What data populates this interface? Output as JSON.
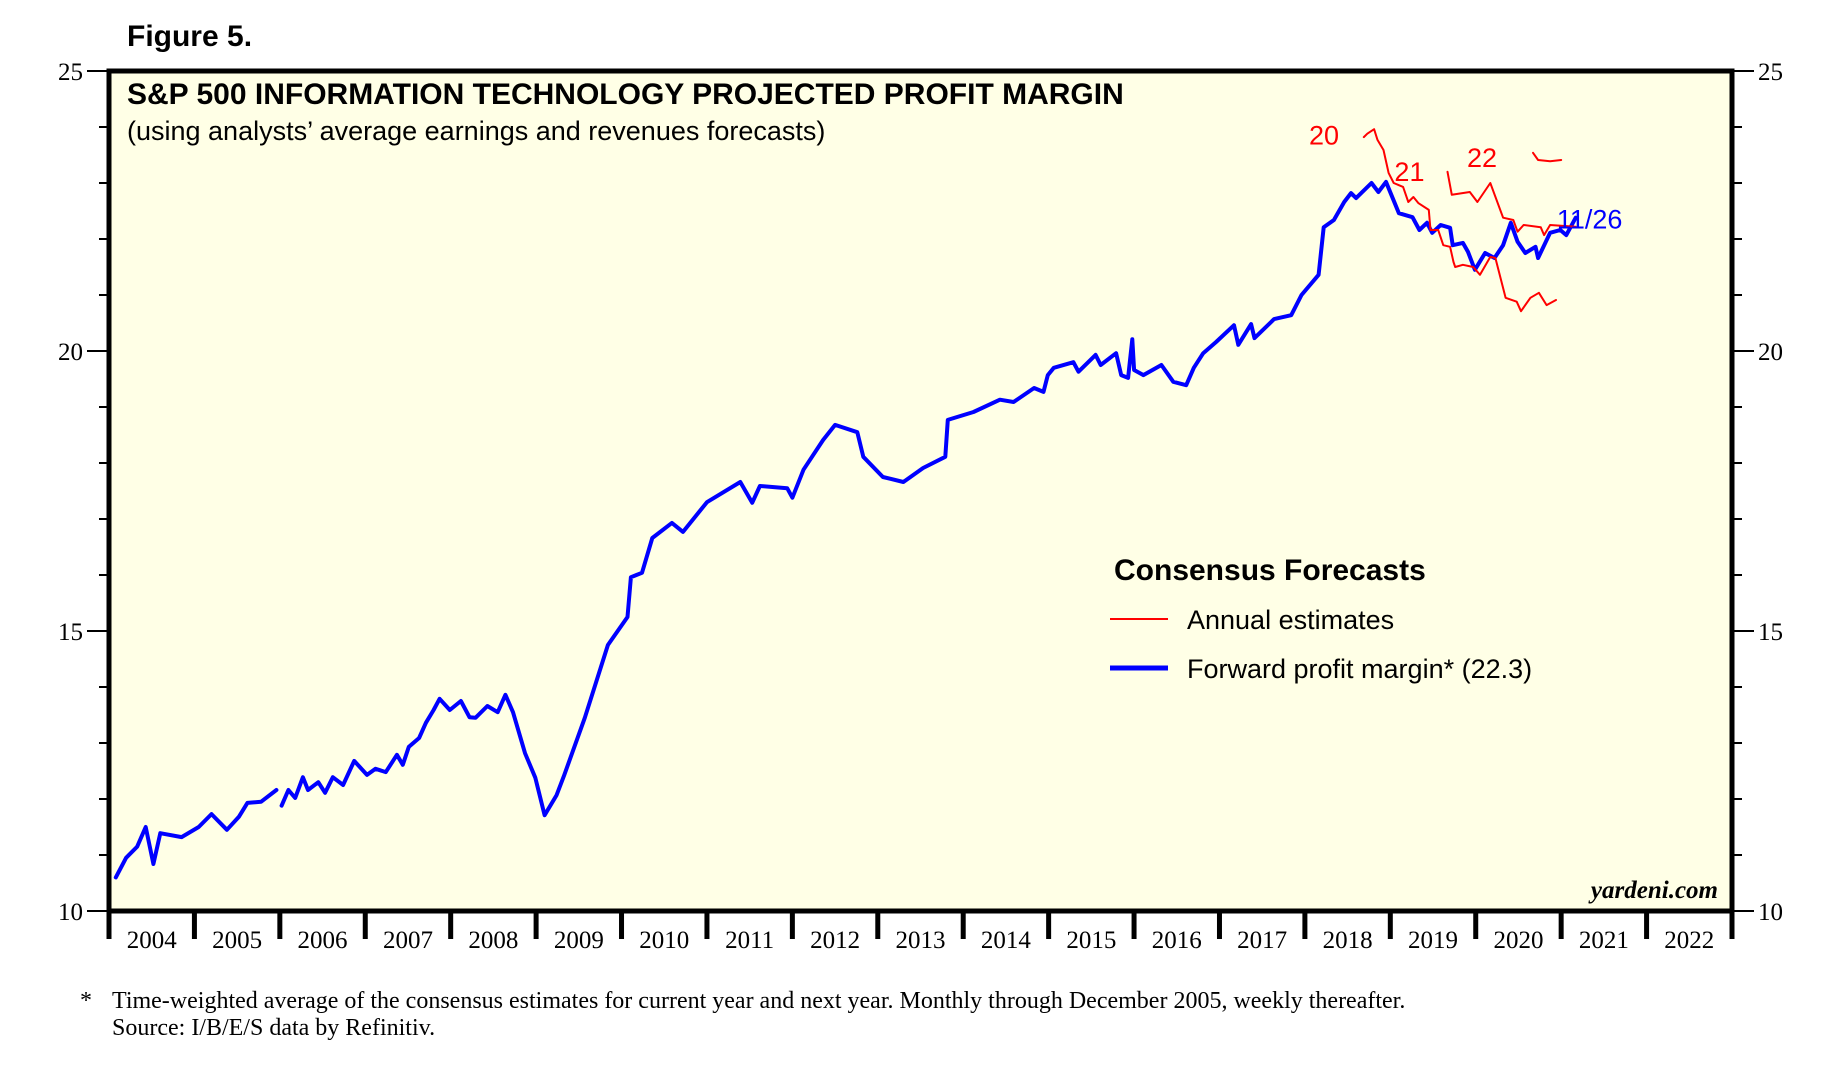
{
  "figure_label": "Figure 5.",
  "footnote": {
    "marker": "*",
    "line1": "Time-weighted average of the consensus estimates for current year and next year. Monthly through December 2005, weekly thereafter.",
    "line2": "Source: I/B/E/S data by Refinitiv."
  },
  "colors": {
    "plot_background": "#ffffe6",
    "forward_line": "#0000ff",
    "annual_line": "#ff0000",
    "axis": "#000000"
  },
  "chart_data": {
    "type": "line",
    "title": "S&P 500 INFORMATION TECHNOLOGY PROJECTED PROFIT MARGIN",
    "subtitle": "(using analysts’ average earnings and revenues forecasts)",
    "xlabel": "",
    "ylabel": "",
    "xlim": [
      2004,
      2023
    ],
    "ylim": [
      10,
      25
    ],
    "y_major_ticks": [
      10,
      15,
      20,
      25
    ],
    "y_minor_step": 1,
    "y_axes": [
      "left",
      "right"
    ],
    "x_tick_labels": [
      "2004",
      "2005",
      "2006",
      "2007",
      "2008",
      "2009",
      "2010",
      "2011",
      "2012",
      "2013",
      "2014",
      "2015",
      "2016",
      "2017",
      "2018",
      "2019",
      "2020",
      "2021",
      "2022"
    ],
    "grid": false,
    "legend": {
      "title": "Consensus Forecasts",
      "position": "center-right",
      "entries": [
        {
          "label": "Annual estimates",
          "series": "annual"
        },
        {
          "label": "Forward profit margin* (22.3)",
          "series": "forward"
        }
      ]
    },
    "watermark": "yardeni.com",
    "annotations": [
      {
        "text": "20",
        "series": "annual-2020",
        "x": 2018.4,
        "y": 23.85,
        "color": "annual"
      },
      {
        "text": "21",
        "series": "annual-2021",
        "x": 2019.4,
        "y": 23.2,
        "color": "annual"
      },
      {
        "text": "22",
        "series": "annual-2022",
        "x": 2020.25,
        "y": 23.45,
        "color": "annual"
      },
      {
        "text": "11/26",
        "series": "forward",
        "x": 2020.95,
        "y": 22.35,
        "color": "forward"
      }
    ],
    "series": [
      {
        "name": "Forward profit margin",
        "id": "forward",
        "latest_value": 22.3,
        "segments": [
          [
            [
              2004.08,
              10.6
            ],
            [
              2004.2,
              10.95
            ],
            [
              2004.33,
              11.15
            ],
            [
              2004.43,
              11.5
            ],
            [
              2004.52,
              10.84
            ],
            [
              2004.6,
              11.39
            ],
            [
              2004.85,
              11.32
            ],
            [
              2005.05,
              11.5
            ],
            [
              2005.2,
              11.73
            ],
            [
              2005.38,
              11.45
            ],
            [
              2005.52,
              11.68
            ],
            [
              2005.62,
              11.93
            ],
            [
              2005.78,
              11.95
            ],
            [
              2005.96,
              12.16
            ]
          ],
          [
            [
              2006.02,
              11.88
            ],
            [
              2006.1,
              12.16
            ],
            [
              2006.18,
              12.02
            ],
            [
              2006.27,
              12.39
            ],
            [
              2006.33,
              12.16
            ],
            [
              2006.45,
              12.3
            ],
            [
              2006.53,
              12.11
            ],
            [
              2006.62,
              12.39
            ],
            [
              2006.74,
              12.25
            ],
            [
              2006.87,
              12.68
            ],
            [
              2007.02,
              12.43
            ],
            [
              2007.12,
              12.54
            ],
            [
              2007.24,
              12.48
            ],
            [
              2007.37,
              12.79
            ],
            [
              2007.44,
              12.61
            ],
            [
              2007.51,
              12.93
            ],
            [
              2007.63,
              13.09
            ],
            [
              2007.71,
              13.36
            ],
            [
              2007.8,
              13.59
            ],
            [
              2007.87,
              13.79
            ],
            [
              2007.99,
              13.59
            ],
            [
              2008.12,
              13.75
            ],
            [
              2008.22,
              13.46
            ],
            [
              2008.29,
              13.45
            ],
            [
              2008.43,
              13.66
            ],
            [
              2008.55,
              13.55
            ],
            [
              2008.64,
              13.86
            ],
            [
              2008.73,
              13.55
            ],
            [
              2008.87,
              12.82
            ],
            [
              2008.99,
              12.38
            ],
            [
              2009.1,
              11.71
            ],
            [
              2009.24,
              12.07
            ],
            [
              2009.33,
              12.43
            ],
            [
              2009.57,
              13.45
            ],
            [
              2009.84,
              14.75
            ],
            [
              2010.07,
              15.25
            ],
            [
              2010.11,
              15.96
            ],
            [
              2010.24,
              16.04
            ],
            [
              2010.36,
              16.66
            ],
            [
              2010.59,
              16.93
            ],
            [
              2010.72,
              16.77
            ],
            [
              2011.0,
              17.3
            ],
            [
              2011.39,
              17.66
            ],
            [
              2011.53,
              17.29
            ],
            [
              2011.62,
              17.59
            ],
            [
              2011.94,
              17.55
            ],
            [
              2012.0,
              17.38
            ],
            [
              2012.13,
              17.88
            ],
            [
              2012.36,
              18.41
            ],
            [
              2012.5,
              18.68
            ],
            [
              2012.76,
              18.55
            ],
            [
              2012.83,
              18.11
            ],
            [
              2013.06,
              17.75
            ],
            [
              2013.3,
              17.66
            ],
            [
              2013.53,
              17.91
            ],
            [
              2013.79,
              18.11
            ],
            [
              2013.82,
              18.77
            ],
            [
              2014.12,
              18.91
            ],
            [
              2014.43,
              19.13
            ],
            [
              2014.59,
              19.09
            ],
            [
              2014.83,
              19.34
            ],
            [
              2014.94,
              19.27
            ],
            [
              2014.99,
              19.57
            ],
            [
              2015.06,
              19.7
            ],
            [
              2015.29,
              19.8
            ],
            [
              2015.35,
              19.63
            ],
            [
              2015.55,
              19.93
            ],
            [
              2015.61,
              19.75
            ],
            [
              2015.79,
              19.96
            ],
            [
              2015.85,
              19.57
            ],
            [
              2015.93,
              19.52
            ],
            [
              2015.98,
              20.21
            ],
            [
              2016.0,
              19.66
            ],
            [
              2016.11,
              19.57
            ],
            [
              2016.32,
              19.75
            ],
            [
              2016.46,
              19.45
            ],
            [
              2016.61,
              19.39
            ],
            [
              2016.7,
              19.7
            ],
            [
              2016.81,
              19.96
            ],
            [
              2016.96,
              20.16
            ],
            [
              2017.17,
              20.46
            ],
            [
              2017.22,
              20.11
            ],
            [
              2017.37,
              20.48
            ],
            [
              2017.41,
              20.23
            ],
            [
              2017.64,
              20.57
            ],
            [
              2017.84,
              20.64
            ],
            [
              2017.96,
              21.0
            ],
            [
              2018.16,
              21.36
            ],
            [
              2018.22,
              22.21
            ],
            [
              2018.34,
              22.34
            ],
            [
              2018.46,
              22.66
            ],
            [
              2018.54,
              22.82
            ],
            [
              2018.6,
              22.73
            ],
            [
              2018.78,
              23.0
            ],
            [
              2018.86,
              22.84
            ],
            [
              2018.95,
              23.02
            ],
            [
              2019.1,
              22.46
            ],
            [
              2019.26,
              22.39
            ],
            [
              2019.34,
              22.16
            ],
            [
              2019.43,
              22.29
            ],
            [
              2019.49,
              22.11
            ],
            [
              2019.59,
              22.25
            ],
            [
              2019.7,
              22.2
            ],
            [
              2019.73,
              21.89
            ],
            [
              2019.85,
              21.93
            ],
            [
              2019.91,
              21.77
            ],
            [
              2019.99,
              21.45
            ],
            [
              2020.11,
              21.75
            ],
            [
              2020.22,
              21.66
            ],
            [
              2020.32,
              21.89
            ],
            [
              2020.41,
              22.29
            ],
            [
              2020.49,
              21.95
            ],
            [
              2020.58,
              21.75
            ],
            [
              2020.7,
              21.86
            ],
            [
              2020.73,
              21.66
            ],
            [
              2020.87,
              22.11
            ],
            [
              2020.99,
              22.16
            ],
            [
              2021.06,
              22.07
            ],
            [
              2021.17,
              22.38
            ]
          ]
        ]
      },
      {
        "name": "Annual estimates 2020",
        "id": "annual-2020",
        "segments": [
          [
            [
              2018.69,
              23.82
            ],
            [
              2018.73,
              23.88
            ],
            [
              2018.81,
              23.96
            ],
            [
              2018.85,
              23.77
            ],
            [
              2018.92,
              23.59
            ],
            [
              2018.98,
              23.18
            ],
            [
              2019.04,
              23.0
            ],
            [
              2019.1,
              22.96
            ],
            [
              2019.15,
              22.93
            ],
            [
              2019.21,
              22.66
            ],
            [
              2019.27,
              22.75
            ],
            [
              2019.33,
              22.64
            ],
            [
              2019.45,
              22.52
            ],
            [
              2019.47,
              22.16
            ],
            [
              2019.56,
              22.16
            ],
            [
              2019.62,
              21.89
            ],
            [
              2019.7,
              21.86
            ],
            [
              2019.74,
              21.59
            ],
            [
              2019.76,
              21.5
            ],
            [
              2019.85,
              21.54
            ],
            [
              2019.97,
              21.5
            ],
            [
              2020.05,
              21.36
            ],
            [
              2020.17,
              21.68
            ],
            [
              2020.23,
              21.66
            ],
            [
              2020.35,
              20.95
            ],
            [
              2020.48,
              20.88
            ],
            [
              2020.53,
              20.71
            ],
            [
              2020.64,
              20.95
            ],
            [
              2020.74,
              21.04
            ],
            [
              2020.83,
              20.82
            ],
            [
              2020.94,
              20.91
            ]
          ]
        ]
      },
      {
        "name": "Annual estimates 2021",
        "id": "annual-2021",
        "segments": [
          [
            [
              2019.67,
              23.2
            ],
            [
              2019.72,
              22.79
            ],
            [
              2019.93,
              22.84
            ],
            [
              2020.02,
              22.66
            ],
            [
              2020.17,
              23.0
            ],
            [
              2020.32,
              22.38
            ],
            [
              2020.44,
              22.34
            ],
            [
              2020.49,
              22.13
            ],
            [
              2020.56,
              22.25
            ],
            [
              2020.76,
              22.21
            ],
            [
              2020.8,
              22.07
            ],
            [
              2020.87,
              22.25
            ],
            [
              2021.17,
              22.22
            ]
          ]
        ]
      },
      {
        "name": "Annual estimates 2022",
        "id": "annual-2022",
        "segments": [
          [
            [
              2020.67,
              23.54
            ],
            [
              2020.73,
              23.41
            ],
            [
              2020.87,
              23.39
            ],
            [
              2021.0,
              23.41
            ]
          ]
        ]
      }
    ]
  }
}
